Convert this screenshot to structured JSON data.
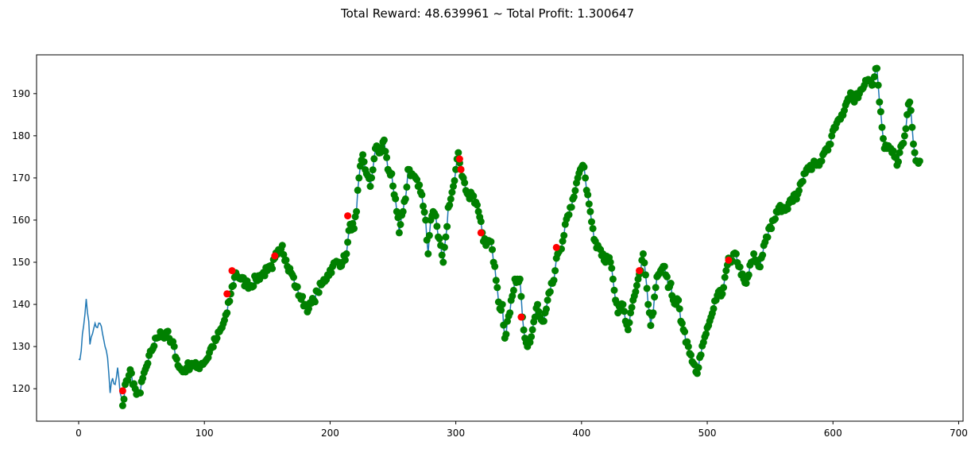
{
  "title": "Total Reward: 48.639961 ~ Total Profit: 1.300647",
  "chart_data": {
    "type": "line",
    "title": "Total Reward: 48.639961 ~ Total Profit: 1.300647",
    "xlabel": "",
    "ylabel": "",
    "xlim": [
      -33.5,
      703.5
    ],
    "ylim": [
      112.3,
      199.2
    ],
    "xticks": [
      0,
      100,
      200,
      300,
      400,
      500,
      600,
      700
    ],
    "yticks": [
      120,
      130,
      140,
      150,
      160,
      170,
      180,
      190
    ],
    "grid": false,
    "line_color": "#1f77b4",
    "marker_colors": {
      "buy": "#008000",
      "sell": "#ff0000"
    },
    "anchors": [
      [
        0,
        127
      ],
      [
        2,
        129
      ],
      [
        4,
        135
      ],
      [
        6,
        141.3
      ],
      [
        8,
        136
      ],
      [
        9,
        130.5
      ],
      [
        11,
        133
      ],
      [
        13,
        135.5
      ],
      [
        15,
        134.5
      ],
      [
        17,
        135.5
      ],
      [
        19,
        133
      ],
      [
        21,
        130
      ],
      [
        23,
        127.3
      ],
      [
        25,
        119
      ],
      [
        27,
        122.5
      ],
      [
        29,
        121
      ],
      [
        31,
        125
      ],
      [
        33,
        119
      ],
      [
        35,
        116
      ],
      [
        37,
        121
      ],
      [
        39,
        122
      ],
      [
        41,
        124.5
      ],
      [
        43,
        121
      ],
      [
        45,
        120
      ],
      [
        47,
        119
      ],
      [
        49,
        119
      ],
      [
        51,
        122.5
      ],
      [
        55,
        126
      ],
      [
        58,
        129
      ],
      [
        62,
        132
      ],
      [
        65,
        133.5
      ],
      [
        68,
        132
      ],
      [
        70,
        133.5
      ],
      [
        73,
        131
      ],
      [
        76,
        130
      ],
      [
        78,
        127
      ],
      [
        80,
        125
      ],
      [
        83,
        124
      ],
      [
        86,
        125
      ],
      [
        90,
        126
      ],
      [
        94,
        125
      ],
      [
        98,
        126
      ],
      [
        102,
        127
      ],
      [
        106,
        130
      ],
      [
        110,
        132
      ],
      [
        114,
        134.5
      ],
      [
        118,
        138
      ],
      [
        121,
        142.5
      ],
      [
        125,
        147.5
      ],
      [
        129,
        146
      ],
      [
        133,
        145
      ],
      [
        137,
        144.5
      ],
      [
        141,
        146
      ],
      [
        145,
        147
      ],
      [
        150,
        148
      ],
      [
        154,
        148.5
      ],
      [
        156,
        151
      ],
      [
        159,
        153
      ],
      [
        162,
        154
      ],
      [
        166,
        149
      ],
      [
        170,
        147
      ],
      [
        173,
        144
      ],
      [
        176,
        142
      ],
      [
        180,
        140
      ],
      [
        183,
        139
      ],
      [
        187,
        141
      ],
      [
        190,
        143
      ],
      [
        194,
        145
      ],
      [
        198,
        147
      ],
      [
        202,
        149
      ],
      [
        206,
        150
      ],
      [
        210,
        150
      ],
      [
        213,
        152
      ],
      [
        216,
        159
      ],
      [
        219,
        158
      ],
      [
        221,
        162
      ],
      [
        223,
        170
      ],
      [
        226,
        175.5
      ],
      [
        229,
        171
      ],
      [
        232,
        168
      ],
      [
        236,
        177
      ],
      [
        240,
        176
      ],
      [
        243,
        179
      ],
      [
        246,
        172
      ],
      [
        249,
        171
      ],
      [
        251,
        166
      ],
      [
        253,
        162
      ],
      [
        255,
        157
      ],
      [
        258,
        162
      ],
      [
        260,
        165
      ],
      [
        262,
        172
      ],
      [
        265,
        171
      ],
      [
        268,
        170
      ],
      [
        270,
        168
      ],
      [
        273,
        166
      ],
      [
        276,
        160
      ],
      [
        278,
        152
      ],
      [
        280,
        160
      ],
      [
        282,
        162
      ],
      [
        284,
        161
      ],
      [
        286,
        156
      ],
      [
        288,
        154
      ],
      [
        290,
        150
      ],
      [
        292,
        156
      ],
      [
        294,
        163
      ],
      [
        296,
        165
      ],
      [
        298,
        168
      ],
      [
        300,
        172
      ],
      [
        302,
        176
      ],
      [
        304,
        172
      ],
      [
        306,
        170
      ],
      [
        308,
        167
      ],
      [
        310,
        166
      ],
      [
        313,
        166
      ],
      [
        315,
        164
      ],
      [
        318,
        162
      ],
      [
        321,
        157
      ],
      [
        324,
        154
      ],
      [
        327,
        155
      ],
      [
        329,
        153
      ],
      [
        331,
        149
      ],
      [
        333,
        144
      ],
      [
        335,
        139
      ],
      [
        337,
        140
      ],
      [
        339,
        132
      ],
      [
        341,
        136
      ],
      [
        343,
        138
      ],
      [
        345,
        142
      ],
      [
        347,
        146
      ],
      [
        349,
        146
      ],
      [
        351,
        146
      ],
      [
        353,
        137
      ],
      [
        355,
        132
      ],
      [
        357,
        130
      ],
      [
        359,
        131
      ],
      [
        361,
        134
      ],
      [
        363,
        137
      ],
      [
        365,
        140
      ],
      [
        367,
        137
      ],
      [
        369,
        136
      ],
      [
        371,
        138
      ],
      [
        373,
        141
      ],
      [
        375,
        143
      ],
      [
        377,
        145
      ],
      [
        379,
        148
      ],
      [
        381,
        152
      ],
      [
        383,
        153
      ],
      [
        385,
        155
      ],
      [
        387,
        159
      ],
      [
        389,
        161
      ],
      [
        391,
        163
      ],
      [
        393,
        165
      ],
      [
        395,
        167
      ],
      [
        397,
        170
      ],
      [
        399,
        172
      ],
      [
        401,
        173
      ],
      [
        403,
        170
      ],
      [
        405,
        166
      ],
      [
        407,
        162
      ],
      [
        409,
        158
      ],
      [
        411,
        155
      ],
      [
        413,
        154
      ],
      [
        415,
        153
      ],
      [
        417,
        152
      ],
      [
        419,
        150
      ],
      [
        421,
        151
      ],
      [
        423,
        150
      ],
      [
        425,
        146
      ],
      [
        427,
        141
      ],
      [
        429,
        138
      ],
      [
        431,
        139
      ],
      [
        433,
        140
      ],
      [
        435,
        136
      ],
      [
        437,
        134
      ],
      [
        439,
        138
      ],
      [
        441,
        141
      ],
      [
        443,
        143
      ],
      [
        445,
        146
      ],
      [
        447,
        148
      ],
      [
        449,
        152
      ],
      [
        451,
        147
      ],
      [
        453,
        140
      ],
      [
        455,
        135
      ],
      [
        457,
        138
      ],
      [
        459,
        144
      ],
      [
        461,
        147
      ],
      [
        463,
        148
      ],
      [
        465,
        149
      ],
      [
        467,
        147
      ],
      [
        469,
        144
      ],
      [
        471,
        145
      ],
      [
        473,
        141
      ],
      [
        475,
        140
      ],
      [
        477,
        141
      ],
      [
        479,
        136
      ],
      [
        481,
        134
      ],
      [
        483,
        131
      ],
      [
        485,
        130
      ],
      [
        487,
        128
      ],
      [
        489,
        126
      ],
      [
        491,
        124
      ],
      [
        493,
        125
      ],
      [
        495,
        128
      ],
      [
        497,
        131
      ],
      [
        499,
        133
      ],
      [
        501,
        135
      ],
      [
        503,
        137
      ],
      [
        505,
        139
      ],
      [
        507,
        141
      ],
      [
        509,
        143
      ],
      [
        511,
        142
      ],
      [
        513,
        144
      ],
      [
        515,
        148
      ],
      [
        517,
        151
      ],
      [
        519,
        150
      ],
      [
        521,
        152
      ],
      [
        523,
        152
      ],
      [
        525,
        149
      ],
      [
        527,
        147
      ],
      [
        529,
        146
      ],
      [
        531,
        145
      ],
      [
        533,
        147
      ],
      [
        535,
        150
      ],
      [
        537,
        152
      ],
      [
        539,
        150
      ],
      [
        541,
        149
      ],
      [
        543,
        151
      ],
      [
        545,
        154
      ],
      [
        547,
        156
      ],
      [
        549,
        158
      ],
      [
        551,
        158
      ],
      [
        553,
        160
      ],
      [
        555,
        162
      ],
      [
        557,
        163
      ],
      [
        559,
        162
      ],
      [
        561,
        163
      ],
      [
        563,
        163
      ],
      [
        565,
        164
      ],
      [
        567,
        165
      ],
      [
        569,
        166
      ],
      [
        571,
        165
      ],
      [
        573,
        167
      ],
      [
        575,
        169
      ],
      [
        577,
        171
      ],
      [
        579,
        172
      ],
      [
        581,
        172
      ],
      [
        583,
        172
      ],
      [
        585,
        174
      ],
      [
        587,
        173
      ],
      [
        589,
        173
      ],
      [
        591,
        174
      ],
      [
        593,
        176
      ],
      [
        595,
        177
      ],
      [
        597,
        178
      ],
      [
        599,
        180
      ],
      [
        601,
        182
      ],
      [
        603,
        183
      ],
      [
        605,
        184
      ],
      [
        607,
        185
      ],
      [
        609,
        186
      ],
      [
        611,
        188
      ],
      [
        613,
        189
      ],
      [
        615,
        190
      ],
      [
        617,
        188
      ],
      [
        619,
        190
      ],
      [
        621,
        190
      ],
      [
        623,
        191
      ],
      [
        625,
        192
      ],
      [
        627,
        193
      ],
      [
        629,
        193
      ],
      [
        631,
        192
      ],
      [
        633,
        194
      ],
      [
        635,
        196
      ],
      [
        637,
        188
      ],
      [
        639,
        182
      ],
      [
        641,
        177
      ],
      [
        643,
        177
      ],
      [
        645,
        177
      ],
      [
        647,
        176
      ],
      [
        649,
        175
      ],
      [
        651,
        173
      ],
      [
        653,
        176
      ],
      [
        655,
        178
      ],
      [
        657,
        180
      ],
      [
        659,
        185
      ],
      [
        661,
        188
      ],
      [
        663,
        182
      ],
      [
        665,
        176
      ],
      [
        667,
        174
      ],
      [
        669,
        174
      ]
    ],
    "trade_start": 35,
    "sell_points": [
      [
        35,
        119.5
      ],
      [
        118,
        142.5
      ],
      [
        122,
        148
      ],
      [
        156,
        151.5
      ],
      [
        214,
        161
      ],
      [
        303,
        174.5
      ],
      [
        304,
        172
      ],
      [
        320,
        157
      ],
      [
        352,
        137
      ],
      [
        380,
        153.5
      ],
      [
        446,
        148
      ],
      [
        517,
        150.5
      ]
    ]
  }
}
